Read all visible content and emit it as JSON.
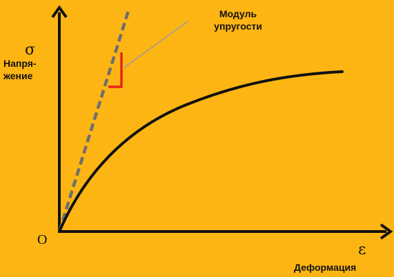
{
  "diagram": {
    "background": "#FDB514",
    "modulus_label": "Модуль упругости",
    "stress_label": "Напря-\nжение",
    "strain_label": "Деформация",
    "stress_symbol": "σ",
    "strain_symbol": "ε",
    "origin_label": "O",
    "colors": {
      "axes": "#111111",
      "curve": "#111111",
      "dashed_line": "#6e6e6e",
      "slope_marker": "#E8231C",
      "leader_line": "#9a9a9a"
    }
  }
}
